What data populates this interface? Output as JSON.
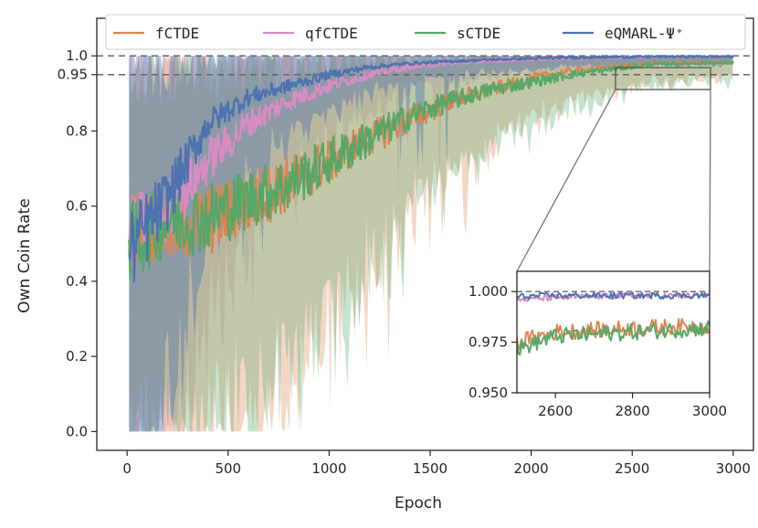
{
  "chart_data": {
    "type": "line",
    "title": "",
    "xlabel": "Epoch",
    "ylabel": "Own Coin Rate",
    "xlim": [
      -150,
      3100
    ],
    "ylim": [
      -0.05,
      1.1
    ],
    "xticks": [
      0,
      500,
      1000,
      1500,
      2000,
      2500,
      3000
    ],
    "yticks": [
      0.0,
      0.2,
      0.4,
      0.6,
      0.8,
      0.95,
      1.0
    ],
    "ytick_labels": [
      "0.0",
      "0.2",
      "0.4",
      "0.6",
      "0.8",
      "0.95",
      "1.0"
    ],
    "reference_lines": [
      1.0,
      0.95
    ],
    "legend_position": "top-center",
    "series": [
      {
        "name": "fCTDE",
        "color": "#dd8452",
        "x": [
          0,
          200,
          400,
          600,
          800,
          1000,
          1200,
          1400,
          1600,
          1800,
          2000,
          2200,
          2400,
          2600,
          2800,
          3000
        ],
        "values": [
          0.55,
          0.54,
          0.56,
          0.61,
          0.66,
          0.72,
          0.78,
          0.83,
          0.88,
          0.91,
          0.94,
          0.96,
          0.97,
          0.98,
          0.982,
          0.983
        ]
      },
      {
        "name": "qfCTDE",
        "color": "#da8bc3",
        "x": [
          0,
          200,
          400,
          600,
          800,
          1000,
          1200,
          1400,
          1600,
          1800,
          2000,
          2200,
          2400,
          2600,
          2800,
          3000
        ],
        "values": [
          0.52,
          0.58,
          0.72,
          0.82,
          0.88,
          0.92,
          0.95,
          0.97,
          0.98,
          0.985,
          0.99,
          0.993,
          0.995,
          0.997,
          0.998,
          0.998
        ]
      },
      {
        "name": "sCTDE",
        "color": "#55a868",
        "x": [
          0,
          200,
          400,
          600,
          800,
          1000,
          1200,
          1400,
          1600,
          1800,
          2000,
          2200,
          2400,
          2600,
          2800,
          3000
        ],
        "values": [
          0.5,
          0.56,
          0.57,
          0.62,
          0.66,
          0.72,
          0.78,
          0.84,
          0.88,
          0.91,
          0.93,
          0.95,
          0.965,
          0.978,
          0.98,
          0.982
        ]
      },
      {
        "name": "eQMARL-Ψ⁺",
        "color": "#4c72b0",
        "x": [
          0,
          200,
          400,
          600,
          800,
          1000,
          1200,
          1400,
          1600,
          1800,
          2000,
          2200,
          2400,
          2600,
          2800,
          3000
        ],
        "values": [
          0.47,
          0.62,
          0.82,
          0.89,
          0.92,
          0.95,
          0.97,
          0.98,
          0.985,
          0.99,
          0.993,
          0.995,
          0.997,
          0.998,
          0.998,
          0.998
        ]
      }
    ],
    "inset": {
      "xlim": [
        2500,
        3000
      ],
      "ylim": [
        0.95,
        1.01
      ],
      "xticks": [
        2600,
        2800,
        3000
      ],
      "yticks": [
        0.95,
        0.975,
        1.0
      ],
      "ytick_labels": [
        "0.950",
        "0.975",
        "1.000"
      ],
      "reference_line": 1.0
    }
  }
}
